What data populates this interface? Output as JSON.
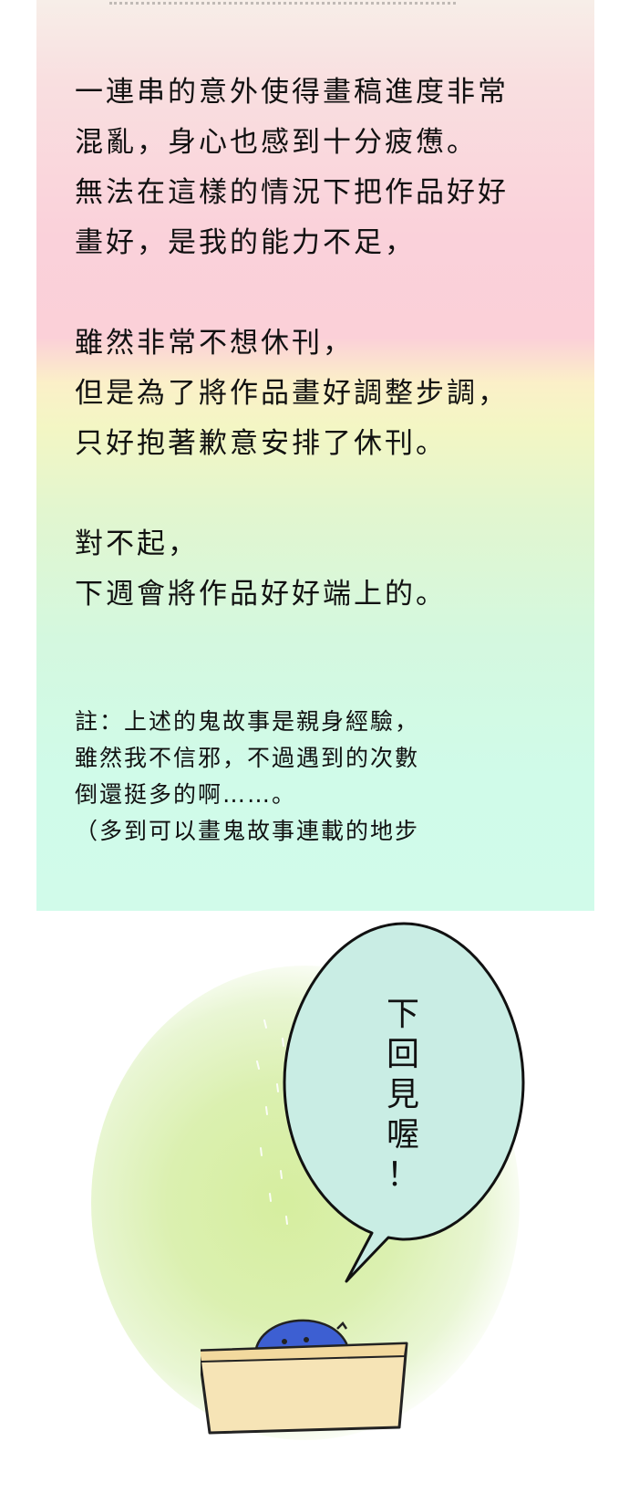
{
  "note": {
    "main_text": "一連串的意外使得畫稿進度非常\n混亂，身心也感到十分疲憊。\n無法在這樣的情況下把作品好好\n畫好，是我的能力不足，\n\n雖然非常不想休刊，\n但是為了將作品畫好調整步調，\n只好抱著歉意安排了休刊。\n\n對不起，\n下週會將作品好好端上的。",
    "footnote": "註：上述的鬼故事是親身經驗，\n雖然我不信邪，不過遇到的次數\n倒還挺多的啊……。\n（多到可以畫鬼故事連載的地步"
  },
  "bubble": {
    "text": "下\n回\n見\n喔\n！"
  },
  "colors": {
    "bubble_fill": "#c9ede4",
    "mascot_body": "#3d5fd2",
    "box_fill": "#f6e4b6",
    "glow": "#d6ee9f"
  }
}
